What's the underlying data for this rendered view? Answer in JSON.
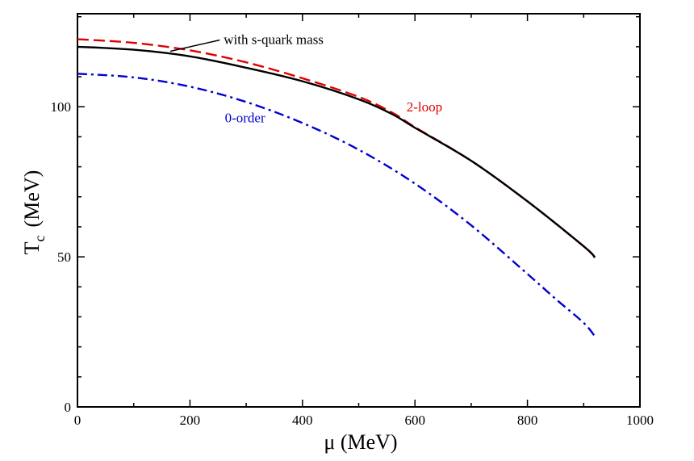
{
  "chart_data": {
    "type": "line",
    "title": "",
    "xlabel": "μ  (MeV)",
    "ylabel_main": "T",
    "ylabel_sub": "c",
    "ylabel_unit": "(MeV)",
    "xlim": [
      0,
      1000
    ],
    "ylim": [
      0,
      131
    ],
    "x_major_ticks": [
      0,
      200,
      400,
      600,
      800,
      1000
    ],
    "x_tick_labels": [
      "0",
      "200",
      "400",
      "600",
      "800",
      "1000"
    ],
    "x_minor_step": 100,
    "y_major_ticks": [
      0,
      50,
      100
    ],
    "y_tick_labels": [
      "0",
      "50",
      "100"
    ],
    "y_minor_step": 10,
    "grid": false,
    "series": [
      {
        "name": "with s-quark mass",
        "color": "#000000",
        "style": "solid",
        "x": [
          0,
          100,
          200,
          300,
          400,
          500,
          560,
          600,
          700,
          800,
          900,
          920
        ],
        "y": [
          120.0,
          119.0,
          116.8,
          113.0,
          108.5,
          102.5,
          97.5,
          93.0,
          82.0,
          68.5,
          53.5,
          49.8
        ]
      },
      {
        "name": "2-loop",
        "color": "#e00000",
        "style": "dashed",
        "x": [
          0,
          100,
          200,
          300,
          400,
          500,
          560,
          600,
          700,
          800,
          900,
          920
        ],
        "y": [
          122.5,
          121.3,
          118.8,
          114.8,
          109.5,
          103.3,
          98.0,
          93.2,
          82.0,
          68.5,
          53.5,
          49.8
        ]
      },
      {
        "name": "0-order",
        "color": "#0000d0",
        "style": "dashdot",
        "x": [
          0,
          100,
          200,
          300,
          400,
          500,
          600,
          700,
          800,
          850,
          900,
          920
        ],
        "y": [
          111.0,
          109.8,
          106.7,
          101.6,
          94.6,
          85.7,
          74.4,
          60.5,
          44.3,
          36.0,
          28.0,
          23.5
        ]
      }
    ],
    "annotations": [
      {
        "text": "with s-quark mass",
        "color": "#000000",
        "x": 260,
        "y": 122.5,
        "arrow_to": [
          165,
          118.5
        ]
      },
      {
        "text": "2-loop",
        "color": "#e00000",
        "x": 585,
        "y": 100
      },
      {
        "text": "0-order",
        "color": "#0000d0",
        "x": 262,
        "y": 96.5
      }
    ]
  }
}
